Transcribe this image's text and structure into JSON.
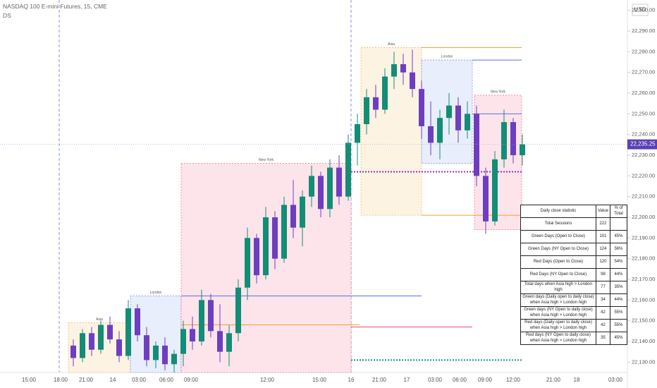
{
  "header": {
    "symbol": "NASDAQ 100 E-mini Futures, 15, CME",
    "indicator": "DS",
    "currency": "USD"
  },
  "chart_data": {
    "type": "candlestick",
    "open": [
      22138,
      22132,
      22144,
      22136,
      22148,
      22141,
      22133,
      22156,
      22143,
      22131,
      22138,
      22129,
      22134,
      22146,
      22140,
      22160,
      22145,
      22135,
      22144,
      22166,
      22190,
      22172,
      22200,
      22180,
      22206,
      22195,
      22210,
      22220,
      22204,
      22224,
      22210,
      22236,
      22245,
      22258,
      22252,
      22268,
      22274,
      22270,
      22262,
      22244,
      22236,
      22248,
      22254,
      22242,
      22250,
      22220,
      22198,
      22228,
      22246,
      22230
    ],
    "high": [
      22141,
      22146,
      22147,
      22150,
      22152,
      22145,
      22160,
      22158,
      22147,
      22140,
      22142,
      22136,
      22150,
      22152,
      22165,
      22163,
      22158,
      22148,
      22170,
      22195,
      22192,
      22205,
      22203,
      22210,
      22218,
      22213,
      22225,
      22222,
      22228,
      22230,
      22240,
      22250,
      22262,
      22264,
      22272,
      22280,
      22279,
      22281,
      22266,
      22256,
      22252,
      22260,
      22258,
      22256,
      22254,
      22224,
      22232,
      22252,
      22248,
      22240
    ],
    "low": [
      22128,
      22130,
      22133,
      22134,
      22139,
      22130,
      22131,
      22140,
      22128,
      22127,
      22126,
      22125,
      22128,
      22136,
      22138,
      22142,
      22130,
      22128,
      22140,
      22160,
      22168,
      22170,
      22175,
      22178,
      22190,
      22186,
      22205,
      22200,
      22200,
      22206,
      22208,
      22225,
      22240,
      22248,
      22250,
      22262,
      22264,
      22258,
      22238,
      22230,
      22228,
      22240,
      22236,
      22238,
      22215,
      22192,
      22196,
      22224,
      22226,
      22225
    ],
    "close": [
      22132,
      22144,
      22136,
      22148,
      22141,
      22133,
      22156,
      22143,
      22131,
      22138,
      22129,
      22134,
      22146,
      22140,
      22160,
      22145,
      22135,
      22144,
      22166,
      22190,
      22172,
      22200,
      22180,
      22206,
      22195,
      22210,
      22220,
      22204,
      22224,
      22210,
      22236,
      22245,
      22258,
      22252,
      22268,
      22274,
      22270,
      22262,
      22244,
      22236,
      22248,
      22254,
      22242,
      22250,
      22220,
      22198,
      22228,
      22246,
      22230,
      22235.25
    ],
    "up_color": "#138d75",
    "down_color": "#6e3ec1",
    "last_price": {
      "value": 22235.25,
      "label": "22,235.25"
    },
    "ylim": [
      22125,
      22305
    ],
    "yticks": [
      {
        "value": 22300,
        "label": "22,300.00"
      },
      {
        "value": 22290,
        "label": "22,290.00"
      },
      {
        "value": 22280,
        "label": "22,280.00"
      },
      {
        "value": 22270,
        "label": "22,270.00"
      },
      {
        "value": 22260,
        "label": "22,260.00"
      },
      {
        "value": 22250,
        "label": "22,250.00"
      },
      {
        "value": 22240,
        "label": "22,240.00"
      },
      {
        "value": 22230,
        "label": "22,230.00"
      },
      {
        "value": 22220,
        "label": "22,220.00"
      },
      {
        "value": 22210,
        "label": "22,210.00"
      },
      {
        "value": 22200,
        "label": "22,200.00"
      },
      {
        "value": 22190,
        "label": "22,190.00"
      },
      {
        "value": 22180,
        "label": "22,180.00"
      },
      {
        "value": 22170,
        "label": "22,170.00"
      },
      {
        "value": 22160,
        "label": "22,160.00"
      },
      {
        "value": 22150,
        "label": "22,150.00"
      },
      {
        "value": 22140,
        "label": "22,140.00"
      },
      {
        "value": 22130,
        "label": "22,130.00"
      }
    ],
    "x_labels": [
      "15:00",
      "18:00",
      "21:00",
      "14",
      "03:00",
      "06:00",
      "09:00",
      "12:00",
      "15:00",
      "16",
      "21:00",
      "17",
      "03:00",
      "06:00",
      "09:00",
      "12:00",
      "21:00",
      "18",
      "03:00"
    ],
    "grid": false,
    "sessions": [
      {
        "label": "Asia",
        "high": 22149,
        "low": 22125,
        "color": "#f59c34",
        "fill": "#fdf3e3"
      },
      {
        "label": "London",
        "high": 22162,
        "low": 22125,
        "color": "#5b6ee1",
        "fill": "#e8eefb"
      },
      {
        "label": "New York",
        "high": 22226,
        "low": 22125,
        "color": "#ea4c72",
        "fill": "#fde4ea"
      },
      {
        "label": "Asia",
        "high": 22282,
        "low": 22201,
        "color": "#f59c34",
        "fill": "#fdf3e3"
      },
      {
        "label": "London",
        "high": 22276,
        "low": 22226,
        "color": "#5b6ee1",
        "fill": "#e8eefb"
      },
      {
        "label": "New York",
        "high": 22259,
        "low": 22194,
        "color": "#ea4c72",
        "fill": "#fde4ea"
      }
    ],
    "levels": [
      {
        "value": 22148,
        "color": "#f59c34",
        "style": "solid"
      },
      {
        "value": 22162,
        "color": "#5b6ee1",
        "style": "solid"
      },
      {
        "value": 22147,
        "color": "#ea4c72",
        "style": "solid"
      },
      {
        "value": 22222,
        "color": "#9c27b0",
        "style": "dotted"
      },
      {
        "value": 22131,
        "color": "#089981",
        "style": "dotted"
      },
      {
        "value": 22282,
        "color": "#f59c34",
        "style": "solid"
      },
      {
        "value": 22276,
        "color": "#5b6ee1",
        "style": "solid"
      },
      {
        "value": 22201,
        "color": "#f59c34",
        "style": "solid"
      },
      {
        "value": 22250,
        "color": "#5b6ee1",
        "style": "solid"
      }
    ]
  },
  "table": {
    "header": [
      "Daily close statistic",
      "Value",
      "% of Total"
    ],
    "rows": [
      [
        "Total Sessions",
        "222"
      ],
      [
        "Green Days (Open to Close)",
        "101",
        "45%"
      ],
      [
        "Green Days (NY Open to Close)",
        "124",
        "56%"
      ],
      [
        "Red Days (Open to Close)",
        "120",
        "54%"
      ],
      [
        "Red Days (NY Open to Close)",
        "98",
        "44%"
      ],
      [
        "Total days when Asia high > London high",
        "77",
        "35%"
      ],
      [
        "Green days (Daily open to daily close) when Asia high > London high",
        "34",
        "44%"
      ],
      [
        "Green days (NY Open to daily close) when Asia high > London high",
        "42",
        "55%"
      ],
      [
        "Red days (Daily open to daily close) when Asia high > London high",
        "42",
        "55%"
      ],
      [
        "Red days (NY Open to daily close) when Asia high > London high",
        "35",
        "45%"
      ]
    ]
  }
}
